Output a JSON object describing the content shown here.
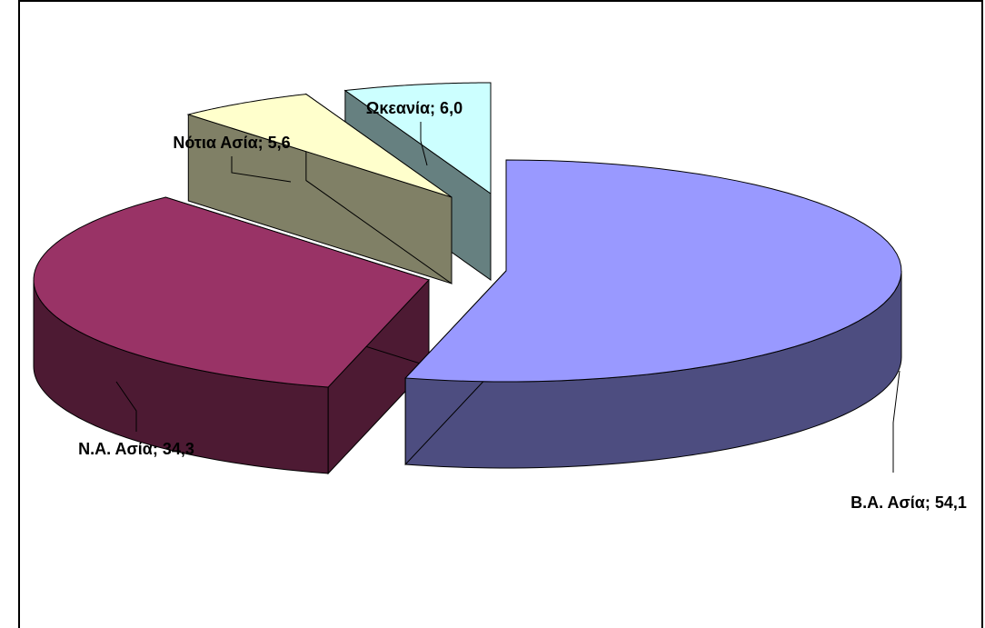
{
  "chart_data": {
    "type": "pie",
    "style": "3d-exploded",
    "slices": [
      {
        "label": "Β.Α. Ασία; 54,1",
        "name": "Β.Α. Ασία",
        "value": 54.1,
        "top_color": "#9999ff",
        "side_color": "#4d4d80"
      },
      {
        "label": "Ν.Α. Ασία; 34,3",
        "name": "Ν.Α. Ασία",
        "value": 34.3,
        "top_color": "#993366",
        "side_color": "#4d1a33"
      },
      {
        "label": "Νότια Ασία; 5,6",
        "name": "Νότια Ασία",
        "value": 5.6,
        "top_color": "#ffffcc",
        "side_color": "#808066"
      },
      {
        "label": "Ωκεανία; 6,0",
        "name": "Ωκεανία",
        "value": 6.0,
        "top_color": "#ccffff",
        "side_color": "#668080"
      }
    ]
  }
}
